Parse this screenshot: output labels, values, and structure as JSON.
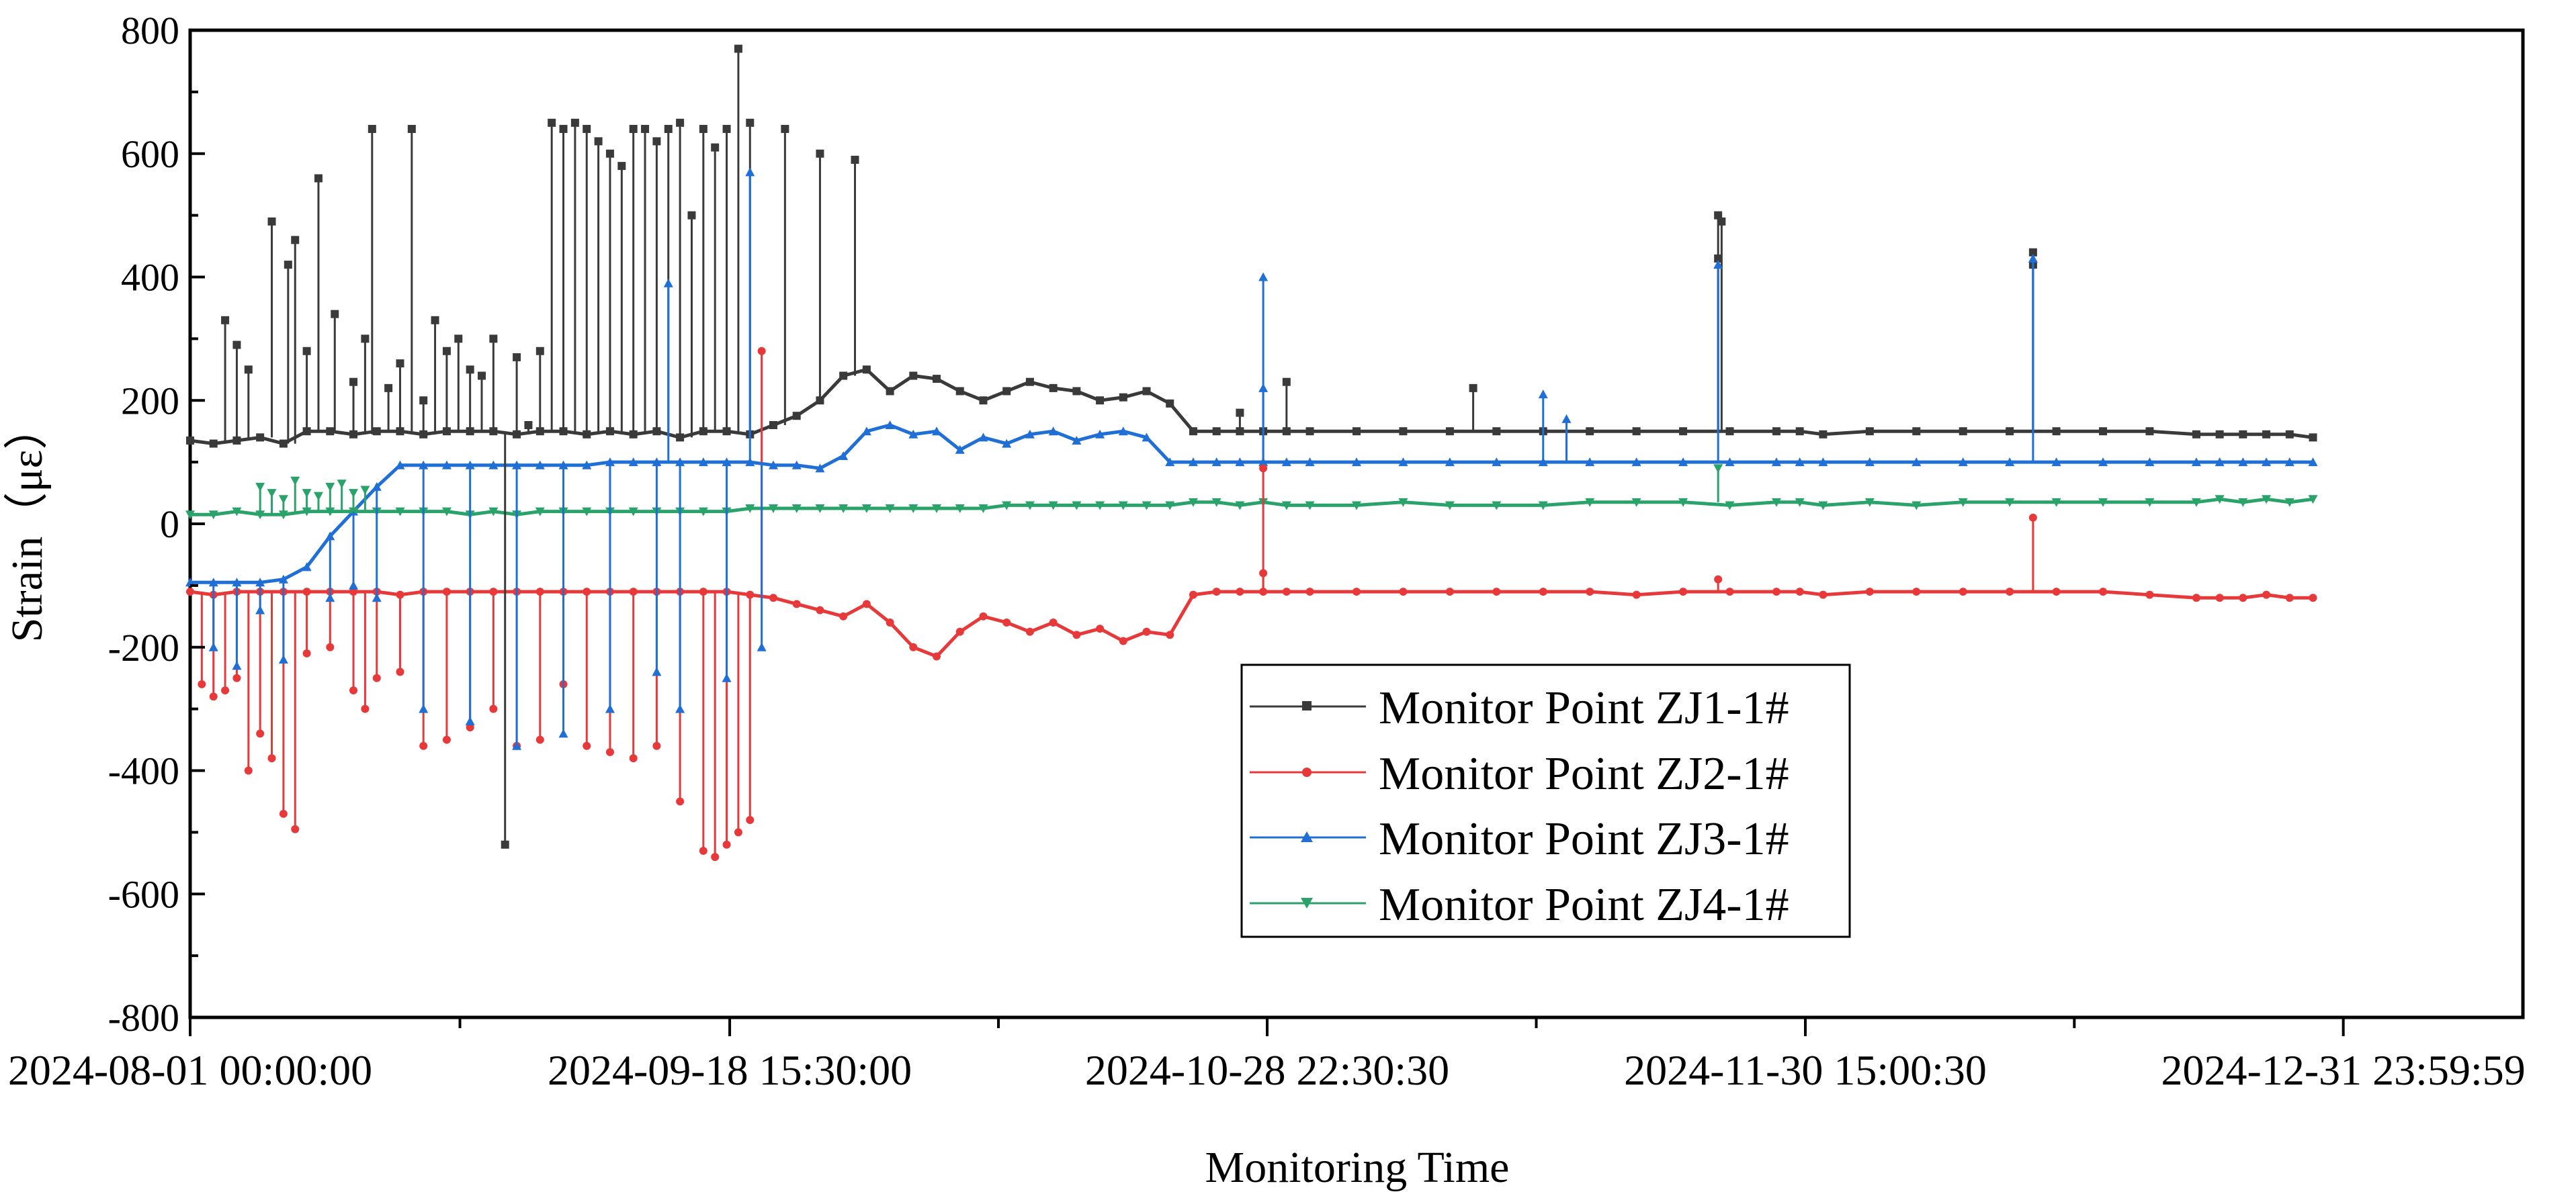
{
  "chart_data": {
    "type": "line",
    "title": "",
    "xlabel": "Monitoring Time",
    "ylabel": "Strain（με）",
    "ylim": [
      -800,
      800
    ],
    "yticks": [
      -800,
      -600,
      -400,
      -200,
      0,
      200,
      400,
      600,
      800
    ],
    "xlim": [
      0,
      1
    ],
    "xticks": [
      {
        "label": "2024-08-01 00:00:00",
        "x": 0.0
      },
      {
        "label": "2024-09-18 15:30:00",
        "x": 0.2313
      },
      {
        "label": "2024-10-28 22:30:30",
        "x": 0.4617
      },
      {
        "label": "2024-11-30 15:00:30",
        "x": 0.6924
      },
      {
        "label": "2024-12-31 23:59:59",
        "x": 0.923
      }
    ],
    "legend_position": "center",
    "grid": false,
    "series": [
      {
        "name": "Monitor Point ZJ1-1#",
        "color": "#3a3a3a",
        "marker": "square",
        "x": [
          0.0,
          0.01,
          0.02,
          0.03,
          0.04,
          0.05,
          0.06,
          0.07,
          0.08,
          0.09,
          0.1,
          0.11,
          0.12,
          0.13,
          0.14,
          0.15,
          0.16,
          0.17,
          0.18,
          0.19,
          0.2,
          0.21,
          0.22,
          0.23,
          0.24,
          0.25,
          0.26,
          0.27,
          0.28,
          0.29,
          0.3,
          0.31,
          0.32,
          0.33,
          0.34,
          0.35,
          0.36,
          0.37,
          0.38,
          0.39,
          0.4,
          0.41,
          0.42,
          0.43,
          0.44,
          0.45,
          0.46,
          0.47,
          0.48,
          0.5,
          0.52,
          0.54,
          0.56,
          0.58,
          0.6,
          0.62,
          0.64,
          0.66,
          0.68,
          0.69,
          0.7,
          0.72,
          0.74,
          0.76,
          0.78,
          0.8,
          0.82,
          0.84,
          0.86,
          0.87,
          0.88,
          0.89,
          0.9,
          0.91
        ],
        "y": [
          135,
          130,
          135,
          140,
          130,
          150,
          150,
          145,
          150,
          150,
          145,
          150,
          150,
          150,
          145,
          150,
          150,
          145,
          150,
          145,
          150,
          140,
          150,
          150,
          145,
          160,
          175,
          200,
          240,
          250,
          215,
          240,
          235,
          215,
          200,
          215,
          230,
          220,
          215,
          200,
          205,
          215,
          195,
          150,
          150,
          150,
          150,
          150,
          150,
          150,
          150,
          150,
          150,
          150,
          150,
          150,
          150,
          150,
          150,
          150,
          145,
          150,
          150,
          150,
          150,
          150,
          150,
          150,
          145,
          145,
          145,
          145,
          145,
          140
        ]
      },
      {
        "name": "Monitor Point ZJ2-1#",
        "color": "#e8393a",
        "marker": "circle",
        "x": [
          0.0,
          0.01,
          0.02,
          0.03,
          0.04,
          0.05,
          0.06,
          0.07,
          0.08,
          0.09,
          0.1,
          0.11,
          0.12,
          0.13,
          0.14,
          0.15,
          0.16,
          0.17,
          0.18,
          0.19,
          0.2,
          0.21,
          0.22,
          0.23,
          0.24,
          0.25,
          0.26,
          0.27,
          0.28,
          0.29,
          0.3,
          0.31,
          0.32,
          0.33,
          0.34,
          0.35,
          0.36,
          0.37,
          0.38,
          0.39,
          0.4,
          0.41,
          0.42,
          0.43,
          0.44,
          0.45,
          0.46,
          0.47,
          0.48,
          0.5,
          0.52,
          0.54,
          0.56,
          0.58,
          0.6,
          0.62,
          0.64,
          0.66,
          0.68,
          0.69,
          0.7,
          0.72,
          0.74,
          0.76,
          0.78,
          0.8,
          0.82,
          0.84,
          0.86,
          0.87,
          0.88,
          0.89,
          0.9,
          0.91
        ],
        "y": [
          -110,
          -115,
          -110,
          -110,
          -110,
          -110,
          -110,
          -110,
          -110,
          -115,
          -110,
          -110,
          -110,
          -110,
          -110,
          -110,
          -110,
          -110,
          -110,
          -110,
          -110,
          -110,
          -110,
          -110,
          -115,
          -120,
          -130,
          -140,
          -150,
          -130,
          -160,
          -200,
          -215,
          -175,
          -150,
          -160,
          -175,
          -160,
          -180,
          -170,
          -190,
          -175,
          -180,
          -115,
          -110,
          -110,
          -110,
          -110,
          -110,
          -110,
          -110,
          -110,
          -110,
          -110,
          -110,
          -115,
          -110,
          -110,
          -110,
          -110,
          -115,
          -110,
          -110,
          -110,
          -110,
          -110,
          -110,
          -115,
          -120,
          -120,
          -120,
          -115,
          -120,
          -120
        ]
      },
      {
        "name": "Monitor Point ZJ3-1#",
        "color": "#1f6fd6",
        "marker": "triangle-up",
        "x": [
          0.0,
          0.01,
          0.02,
          0.03,
          0.04,
          0.05,
          0.06,
          0.07,
          0.08,
          0.09,
          0.1,
          0.11,
          0.12,
          0.13,
          0.14,
          0.15,
          0.16,
          0.17,
          0.18,
          0.19,
          0.2,
          0.21,
          0.22,
          0.23,
          0.24,
          0.25,
          0.26,
          0.27,
          0.28,
          0.29,
          0.3,
          0.31,
          0.32,
          0.33,
          0.34,
          0.35,
          0.36,
          0.37,
          0.38,
          0.39,
          0.4,
          0.41,
          0.42,
          0.43,
          0.44,
          0.45,
          0.46,
          0.47,
          0.48,
          0.5,
          0.52,
          0.54,
          0.56,
          0.58,
          0.6,
          0.62,
          0.64,
          0.66,
          0.68,
          0.69,
          0.7,
          0.72,
          0.74,
          0.76,
          0.78,
          0.8,
          0.82,
          0.84,
          0.86,
          0.87,
          0.88,
          0.89,
          0.9,
          0.91
        ],
        "y": [
          -95,
          -95,
          -95,
          -95,
          -90,
          -70,
          -20,
          20,
          60,
          95,
          95,
          95,
          95,
          95,
          95,
          95,
          95,
          95,
          100,
          100,
          100,
          100,
          100,
          100,
          100,
          95,
          95,
          90,
          110,
          150,
          160,
          145,
          150,
          120,
          140,
          130,
          145,
          150,
          135,
          145,
          150,
          140,
          100,
          100,
          100,
          100,
          100,
          100,
          100,
          100,
          100,
          100,
          100,
          100,
          100,
          100,
          100,
          100,
          100,
          100,
          100,
          100,
          100,
          100,
          100,
          100,
          100,
          100,
          100,
          100,
          100,
          100,
          100,
          100
        ]
      },
      {
        "name": "Monitor Point ZJ4-1#",
        "color": "#2aa36b",
        "marker": "triangle-down",
        "x": [
          0.0,
          0.01,
          0.02,
          0.03,
          0.04,
          0.05,
          0.06,
          0.07,
          0.08,
          0.09,
          0.1,
          0.11,
          0.12,
          0.13,
          0.14,
          0.15,
          0.16,
          0.17,
          0.18,
          0.19,
          0.2,
          0.21,
          0.22,
          0.23,
          0.24,
          0.25,
          0.26,
          0.27,
          0.28,
          0.29,
          0.3,
          0.31,
          0.32,
          0.33,
          0.34,
          0.35,
          0.36,
          0.37,
          0.38,
          0.39,
          0.4,
          0.41,
          0.42,
          0.43,
          0.44,
          0.45,
          0.46,
          0.47,
          0.48,
          0.5,
          0.52,
          0.54,
          0.56,
          0.58,
          0.6,
          0.62,
          0.64,
          0.66,
          0.68,
          0.69,
          0.7,
          0.72,
          0.74,
          0.76,
          0.78,
          0.8,
          0.82,
          0.84,
          0.86,
          0.87,
          0.88,
          0.89,
          0.9,
          0.91
        ],
        "y": [
          15,
          15,
          20,
          15,
          15,
          20,
          20,
          20,
          20,
          20,
          20,
          20,
          15,
          20,
          15,
          20,
          20,
          20,
          20,
          20,
          20,
          20,
          20,
          20,
          25,
          25,
          25,
          25,
          25,
          25,
          25,
          25,
          25,
          25,
          25,
          30,
          30,
          30,
          30,
          30,
          30,
          30,
          30,
          35,
          35,
          30,
          35,
          30,
          30,
          30,
          35,
          30,
          30,
          30,
          35,
          35,
          35,
          30,
          35,
          35,
          30,
          35,
          30,
          35,
          35,
          35,
          35,
          35,
          35,
          40,
          35,
          40,
          35,
          40
        ]
      }
    ],
    "spikes": [
      {
        "series": 0,
        "points": [
          [
            0.015,
            330
          ],
          [
            0.02,
            290
          ],
          [
            0.025,
            250
          ],
          [
            0.035,
            490
          ],
          [
            0.042,
            420
          ],
          [
            0.045,
            460
          ],
          [
            0.05,
            280
          ],
          [
            0.055,
            560
          ],
          [
            0.062,
            340
          ],
          [
            0.07,
            230
          ],
          [
            0.075,
            300
          ],
          [
            0.078,
            640
          ],
          [
            0.085,
            220
          ],
          [
            0.09,
            260
          ],
          [
            0.095,
            640
          ],
          [
            0.1,
            200
          ],
          [
            0.105,
            330
          ],
          [
            0.11,
            280
          ],
          [
            0.115,
            300
          ],
          [
            0.12,
            250
          ],
          [
            0.125,
            240
          ],
          [
            0.13,
            300
          ],
          [
            0.135,
            -520
          ],
          [
            0.14,
            270
          ],
          [
            0.145,
            160
          ],
          [
            0.15,
            280
          ],
          [
            0.155,
            650
          ],
          [
            0.16,
            640
          ],
          [
            0.165,
            650
          ],
          [
            0.17,
            640
          ],
          [
            0.175,
            620
          ],
          [
            0.18,
            600
          ],
          [
            0.185,
            580
          ],
          [
            0.19,
            640
          ],
          [
            0.195,
            640
          ],
          [
            0.2,
            620
          ],
          [
            0.205,
            640
          ],
          [
            0.21,
            650
          ],
          [
            0.215,
            500
          ],
          [
            0.22,
            640
          ],
          [
            0.225,
            610
          ],
          [
            0.23,
            640
          ],
          [
            0.235,
            770
          ],
          [
            0.24,
            650
          ],
          [
            0.255,
            640
          ],
          [
            0.27,
            600
          ],
          [
            0.285,
            590
          ],
          [
            0.45,
            180
          ],
          [
            0.47,
            230
          ],
          [
            0.55,
            220
          ],
          [
            0.655,
            500
          ],
          [
            0.6565,
            490
          ],
          [
            0.655,
            430
          ],
          [
            0.79,
            440
          ],
          [
            0.79,
            420
          ]
        ]
      },
      {
        "series": 1,
        "points": [
          [
            0.005,
            -260
          ],
          [
            0.01,
            -280
          ],
          [
            0.015,
            -270
          ],
          [
            0.02,
            -250
          ],
          [
            0.025,
            -400
          ],
          [
            0.03,
            -340
          ],
          [
            0.035,
            -380
          ],
          [
            0.04,
            -470
          ],
          [
            0.045,
            -495
          ],
          [
            0.05,
            -210
          ],
          [
            0.06,
            -200
          ],
          [
            0.07,
            -270
          ],
          [
            0.075,
            -300
          ],
          [
            0.08,
            -250
          ],
          [
            0.09,
            -240
          ],
          [
            0.1,
            -360
          ],
          [
            0.11,
            -350
          ],
          [
            0.12,
            -330
          ],
          [
            0.13,
            -300
          ],
          [
            0.14,
            -360
          ],
          [
            0.15,
            -350
          ],
          [
            0.16,
            -260
          ],
          [
            0.17,
            -360
          ],
          [
            0.18,
            -370
          ],
          [
            0.19,
            -380
          ],
          [
            0.2,
            -360
          ],
          [
            0.21,
            -450
          ],
          [
            0.22,
            -530
          ],
          [
            0.225,
            -540
          ],
          [
            0.23,
            -520
          ],
          [
            0.235,
            -500
          ],
          [
            0.24,
            -480
          ],
          [
            0.245,
            280
          ],
          [
            0.46,
            -80
          ],
          [
            0.46,
            90
          ],
          [
            0.655,
            -90
          ],
          [
            0.79,
            10
          ]
        ]
      },
      {
        "series": 2,
        "points": [
          [
            0.01,
            -200
          ],
          [
            0.02,
            -230
          ],
          [
            0.03,
            -140
          ],
          [
            0.04,
            -220
          ],
          [
            0.06,
            -120
          ],
          [
            0.07,
            -100
          ],
          [
            0.08,
            -120
          ],
          [
            0.1,
            -300
          ],
          [
            0.12,
            -320
          ],
          [
            0.14,
            -360
          ],
          [
            0.16,
            -340
          ],
          [
            0.18,
            -300
          ],
          [
            0.2,
            -240
          ],
          [
            0.205,
            390
          ],
          [
            0.21,
            -300
          ],
          [
            0.23,
            -250
          ],
          [
            0.24,
            570
          ],
          [
            0.245,
            -200
          ],
          [
            0.46,
            400
          ],
          [
            0.46,
            220
          ],
          [
            0.58,
            210
          ],
          [
            0.59,
            170
          ],
          [
            0.655,
            420
          ],
          [
            0.79,
            430
          ]
        ]
      },
      {
        "series": 3,
        "points": [
          [
            0.03,
            60
          ],
          [
            0.035,
            50
          ],
          [
            0.04,
            40
          ],
          [
            0.045,
            70
          ],
          [
            0.05,
            50
          ],
          [
            0.055,
            45
          ],
          [
            0.06,
            60
          ],
          [
            0.065,
            65
          ],
          [
            0.07,
            50
          ],
          [
            0.075,
            55
          ],
          [
            0.655,
            90
          ]
        ]
      }
    ]
  }
}
